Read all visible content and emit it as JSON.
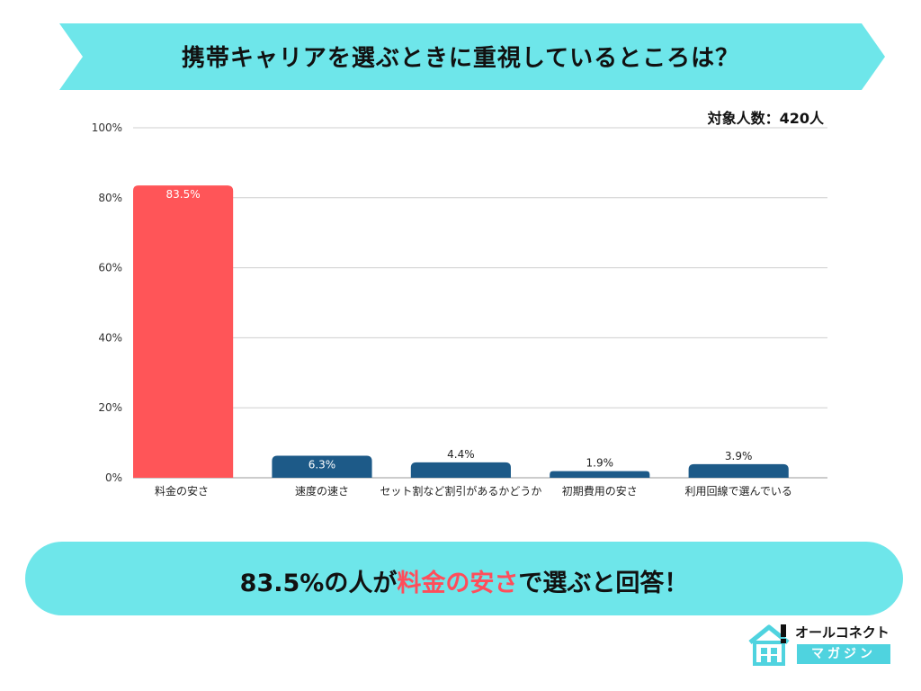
{
  "header": {
    "title": "携帯キャリアを選ぶときに重視しているところは？",
    "sample_size": "対象人数：420人",
    "banner_color": "#6ee6ea"
  },
  "chart_data": {
    "type": "bar",
    "categories": [
      "料金の安さ",
      "速度の速さ",
      "セット割など割引があるかどうか",
      "初期費用の安さ",
      "利用回線で選んでいる"
    ],
    "values": [
      83.5,
      6.3,
      4.4,
      1.9,
      3.9
    ],
    "value_labels": [
      "83.5%",
      "6.3%",
      "4.4%",
      "1.9%",
      "3.9%"
    ],
    "ylim": [
      0,
      100
    ],
    "yticks": [
      0,
      20,
      40,
      60,
      80,
      100
    ],
    "ytick_labels": [
      "0%",
      "20%",
      "40%",
      "60%",
      "80%",
      "100%"
    ],
    "colors": [
      "#ff5558",
      "#1d5a88",
      "#1d5a88",
      "#1d5a88",
      "#1d5a88"
    ],
    "label_inside": [
      true,
      true,
      false,
      false,
      false
    ],
    "grid": true,
    "title": "",
    "xlabel": "",
    "ylabel": ""
  },
  "summary": {
    "prefix": "83.5%の人が",
    "highlight": "料金の安さ",
    "suffix": "で選ぶと回答！",
    "highlight_color": "#ff4d5a",
    "box_color": "#6ee6ea"
  },
  "logo": {
    "name": "オールコネクト",
    "sub": "マガジン",
    "icon": "house-icon"
  }
}
